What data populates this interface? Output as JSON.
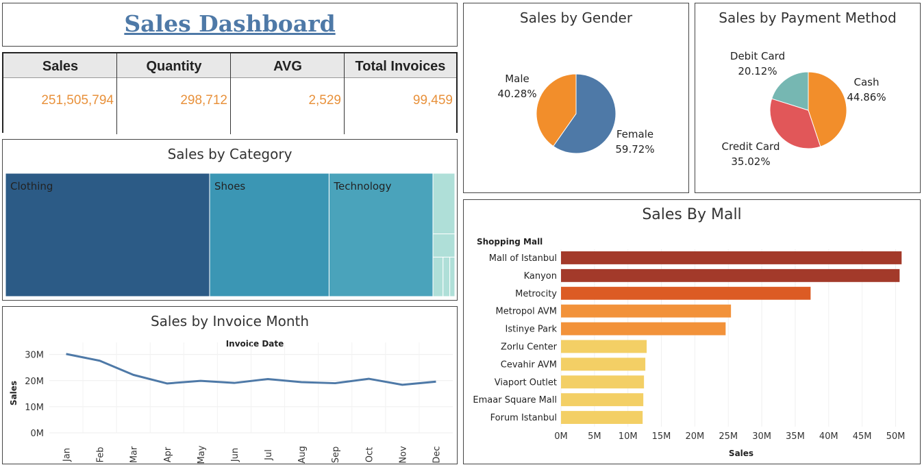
{
  "dashboard": {
    "title": "Sales Dashboard"
  },
  "kpis": [
    {
      "label": "Sales",
      "value": "251,505,794"
    },
    {
      "label": "Quantity",
      "value": "298,712"
    },
    {
      "label": "AVG",
      "value": "2,529"
    },
    {
      "label": "Total Invoices",
      "value": "99,459"
    }
  ],
  "colors": {
    "kpi_value": "#e8913b",
    "line": "#4e79a7",
    "male": "#f28e2b",
    "female": "#4e79a7",
    "cash": "#f28e2b",
    "credit_card": "#e15759",
    "debit_card": "#76b7b2"
  },
  "chart_data": [
    {
      "id": "category",
      "type": "treemap",
      "title": "Sales by Category",
      "categories": [
        "Clothing",
        "Shoes",
        "Technology",
        "",
        "",
        "",
        "",
        ""
      ],
      "values": [
        113.8,
        66.6,
        57.9,
        6.0,
        2.3,
        1.8,
        1.2,
        0.9
      ],
      "colors": [
        "#2c5b86",
        "#3b96b4",
        "#4aa3bb",
        "#afdfd8",
        "#afdfd8",
        "#afdfd8",
        "#afdfd8",
        "#afdfd8"
      ]
    },
    {
      "id": "month",
      "type": "line",
      "title": "Sales by Invoice Month",
      "xlabel": "Invoice Date",
      "ylabel": "Sales",
      "categories": [
        "Jan",
        "Feb",
        "Mar",
        "Apr",
        "May",
        "Jun",
        "Jul",
        "Aug",
        "Sep",
        "Oct",
        "Nov",
        "Dec"
      ],
      "values": [
        30.2,
        27.6,
        22.2,
        18.9,
        19.9,
        19.1,
        20.6,
        19.4,
        19.0,
        20.7,
        18.4,
        19.6
      ],
      "yticks": [
        0,
        10,
        20,
        30
      ],
      "ytick_labels": [
        "0M",
        "10M",
        "20M",
        "30M"
      ],
      "ylim": [
        0,
        32
      ]
    },
    {
      "id": "gender",
      "type": "pie",
      "title": "Sales by Gender",
      "labels": [
        "Female",
        "Male"
      ],
      "values": [
        59.72,
        40.28
      ],
      "value_labels": [
        "59.72%",
        "40.28%"
      ],
      "colors": [
        "#4e79a7",
        "#f28e2b"
      ]
    },
    {
      "id": "payment",
      "type": "pie",
      "title": "Sales by Payment Method",
      "labels": [
        "Cash",
        "Credit Card",
        "Debit Card"
      ],
      "values": [
        44.86,
        35.02,
        20.12
      ],
      "value_labels": [
        "44.86%",
        "35.02%",
        "20.12%"
      ],
      "colors": [
        "#f28e2b",
        "#e15759",
        "#76b7b2"
      ]
    },
    {
      "id": "mall",
      "type": "bar",
      "orientation": "horizontal",
      "title": "Sales By Mall",
      "ylabel": "Shopping Mall",
      "xlabel": "Sales",
      "categories": [
        "Mall of Istanbul",
        "Kanyon",
        "Metrocity",
        "Metropol AVM",
        "Istinye Park",
        "Zorlu Center",
        "Cevahir AVM",
        "Viaport Outlet",
        "Emaar Square Mall",
        "Forum Istanbul"
      ],
      "values": [
        50.9,
        50.6,
        37.3,
        25.4,
        24.6,
        12.8,
        12.6,
        12.4,
        12.3,
        12.2
      ],
      "colors": [
        "#a33a2a",
        "#a33a2a",
        "#dc5b24",
        "#f2923a",
        "#f2923a",
        "#f3cf65",
        "#f3cf65",
        "#f3cf65",
        "#f3cf65",
        "#f3cf65"
      ],
      "xticks": [
        0,
        5,
        10,
        15,
        20,
        25,
        30,
        35,
        40,
        45,
        50
      ],
      "xtick_labels": [
        "0M",
        "5M",
        "10M",
        "15M",
        "20M",
        "25M",
        "30M",
        "35M",
        "40M",
        "45M",
        "50M"
      ],
      "xlim": [
        0,
        52
      ]
    }
  ]
}
